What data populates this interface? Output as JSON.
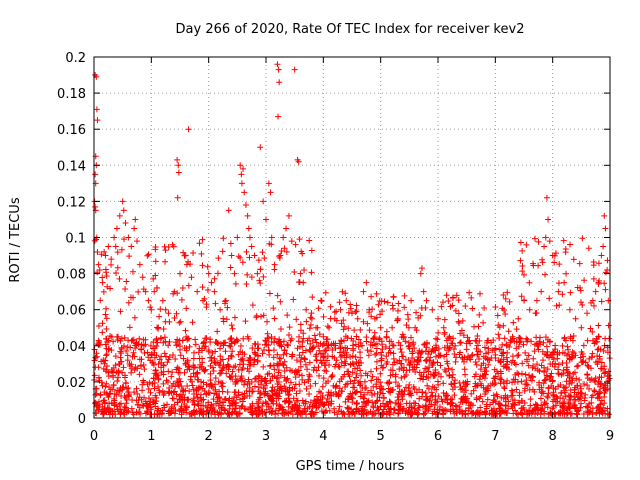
{
  "chart_data": {
    "type": "scatter",
    "title": "Day 266 of 2020, Rate Of TEC Index for receiver kev2",
    "xlabel": "GPS time / hours",
    "ylabel": "ROTI / TECUs",
    "xlim": [
      0,
      9
    ],
    "ylim": [
      0,
      0.2
    ],
    "x_ticks": [
      "0",
      "1",
      "2",
      "3",
      "4",
      "5",
      "6",
      "7",
      "8",
      "9"
    ],
    "y_ticks": [
      "0",
      "0.02",
      "0.04",
      "0.06",
      "0.08",
      "0.1",
      "0.12",
      "0.14",
      "0.16",
      "0.18",
      "0.2"
    ],
    "grid": true,
    "marker": "+",
    "color": "#ff0000",
    "series": [
      {
        "name": "ROTI",
        "points": [
          [
            0.02,
            0.19
          ],
          [
            0.04,
            0.189
          ],
          [
            0.05,
            0.171
          ],
          [
            0.06,
            0.165
          ],
          [
            0.03,
            0.145
          ],
          [
            0.04,
            0.14
          ],
          [
            0.02,
            0.135
          ],
          [
            0.03,
            0.13
          ],
          [
            0.01,
            0.12
          ],
          [
            0.02,
            0.117
          ],
          [
            0.03,
            0.115
          ],
          [
            0.05,
            0.1
          ],
          [
            0.06,
            0.092
          ],
          [
            0.08,
            0.085
          ],
          [
            0.1,
            0.082
          ],
          [
            0.15,
            0.075
          ],
          [
            0.2,
            0.09
          ],
          [
            0.25,
            0.095
          ],
          [
            0.3,
            0.088
          ],
          [
            0.35,
            0.1
          ],
          [
            0.4,
            0.105
          ],
          [
            0.45,
            0.112
          ],
          [
            0.5,
            0.12
          ],
          [
            0.52,
            0.115
          ],
          [
            0.55,
            0.108
          ],
          [
            0.6,
            0.1
          ],
          [
            0.65,
            0.095
          ],
          [
            0.7,
            0.105
          ],
          [
            0.72,
            0.11
          ],
          [
            0.75,
            0.098
          ],
          [
            0.8,
            0.085
          ],
          [
            0.85,
            0.078
          ],
          [
            0.9,
            0.07
          ],
          [
            0.95,
            0.065
          ],
          [
            1.0,
            0.06
          ],
          [
            1.05,
            0.07
          ],
          [
            1.1,
            0.072
          ],
          [
            1.2,
            0.065
          ],
          [
            1.25,
            0.06
          ],
          [
            1.3,
            0.058
          ],
          [
            1.4,
            0.07
          ],
          [
            1.45,
            0.143
          ],
          [
            1.47,
            0.14
          ],
          [
            1.48,
            0.136
          ],
          [
            1.46,
            0.122
          ],
          [
            1.5,
            0.08
          ],
          [
            1.55,
            0.072
          ],
          [
            1.6,
            0.09
          ],
          [
            1.62,
            0.085
          ],
          [
            1.65,
            0.16
          ],
          [
            1.7,
            0.078
          ],
          [
            1.8,
            0.07
          ],
          [
            1.9,
            0.065
          ],
          [
            2.0,
            0.08
          ],
          [
            2.05,
            0.075
          ],
          [
            2.1,
            0.07
          ],
          [
            2.2,
            0.06
          ],
          [
            2.3,
            0.065
          ],
          [
            2.35,
            0.115
          ],
          [
            2.4,
            0.09
          ],
          [
            2.45,
            0.08
          ],
          [
            2.5,
            0.1
          ],
          [
            2.55,
            0.14
          ],
          [
            2.57,
            0.135
          ],
          [
            2.6,
            0.138
          ],
          [
            2.58,
            0.13
          ],
          [
            2.62,
            0.125
          ],
          [
            2.65,
            0.118
          ],
          [
            2.68,
            0.112
          ],
          [
            2.7,
            0.105
          ],
          [
            2.72,
            0.1
          ],
          [
            2.75,
            0.095
          ],
          [
            2.8,
            0.09
          ],
          [
            2.85,
            0.08
          ],
          [
            2.9,
            0.15
          ],
          [
            2.95,
            0.12
          ],
          [
            3.0,
            0.11
          ],
          [
            3.05,
            0.13
          ],
          [
            3.08,
            0.125
          ],
          [
            3.1,
            0.1
          ],
          [
            3.15,
            0.085
          ],
          [
            3.2,
            0.196
          ],
          [
            3.22,
            0.193
          ],
          [
            3.23,
            0.186
          ],
          [
            3.21,
            0.167
          ],
          [
            3.25,
            0.09
          ],
          [
            3.3,
            0.1
          ],
          [
            3.35,
            0.105
          ],
          [
            3.4,
            0.112
          ],
          [
            3.45,
            0.098
          ],
          [
            3.5,
            0.193
          ],
          [
            3.55,
            0.143
          ],
          [
            3.57,
            0.142
          ],
          [
            3.6,
            0.08
          ],
          [
            3.65,
            0.075
          ],
          [
            3.7,
            0.06
          ],
          [
            3.8,
            0.055
          ],
          [
            3.9,
            0.05
          ],
          [
            4.0,
            0.045
          ],
          [
            4.1,
            0.05
          ],
          [
            4.2,
            0.055
          ],
          [
            4.3,
            0.06
          ],
          [
            4.4,
            0.065
          ],
          [
            4.5,
            0.058
          ],
          [
            4.6,
            0.055
          ],
          [
            4.7,
            0.07
          ],
          [
            4.75,
            0.075
          ],
          [
            4.8,
            0.06
          ],
          [
            4.9,
            0.055
          ],
          [
            5.0,
            0.05
          ],
          [
            5.1,
            0.045
          ],
          [
            5.2,
            0.05
          ],
          [
            5.3,
            0.055
          ],
          [
            5.4,
            0.045
          ],
          [
            5.5,
            0.04
          ],
          [
            5.6,
            0.05
          ],
          [
            5.7,
            0.08
          ],
          [
            5.72,
            0.083
          ],
          [
            5.75,
            0.07
          ],
          [
            5.8,
            0.065
          ],
          [
            5.9,
            0.06
          ],
          [
            6.0,
            0.055
          ],
          [
            6.1,
            0.05
          ],
          [
            6.2,
            0.045
          ],
          [
            6.3,
            0.04
          ],
          [
            6.4,
            0.042
          ],
          [
            6.5,
            0.038
          ],
          [
            6.6,
            0.035
          ],
          [
            6.7,
            0.037
          ],
          [
            6.8,
            0.034
          ],
          [
            6.9,
            0.032
          ],
          [
            7.0,
            0.035
          ],
          [
            7.1,
            0.038
          ],
          [
            7.2,
            0.04
          ],
          [
            7.3,
            0.045
          ],
          [
            7.4,
            0.055
          ],
          [
            7.5,
            0.065
          ],
          [
            7.6,
            0.06
          ],
          [
            7.7,
            0.058
          ],
          [
            7.8,
            0.07
          ],
          [
            7.85,
            0.095
          ],
          [
            7.88,
            0.1
          ],
          [
            7.9,
            0.122
          ],
          [
            7.92,
            0.11
          ],
          [
            7.95,
            0.098
          ],
          [
            8.0,
            0.09
          ],
          [
            8.1,
            0.07
          ],
          [
            8.2,
            0.075
          ],
          [
            8.3,
            0.06
          ],
          [
            8.4,
            0.055
          ],
          [
            8.5,
            0.05
          ],
          [
            8.6,
            0.058
          ],
          [
            8.7,
            0.065
          ],
          [
            8.75,
            0.07
          ],
          [
            8.8,
            0.075
          ],
          [
            8.85,
            0.09
          ],
          [
            8.88,
            0.095
          ],
          [
            8.9,
            0.112
          ],
          [
            8.92,
            0.105
          ],
          [
            8.95,
            0.082
          ],
          [
            8.97,
            0.065
          ]
        ]
      }
    ],
    "dense_band": {
      "description": "dense cloud of measurements",
      "y_range": [
        0.002,
        0.045
      ]
    }
  }
}
